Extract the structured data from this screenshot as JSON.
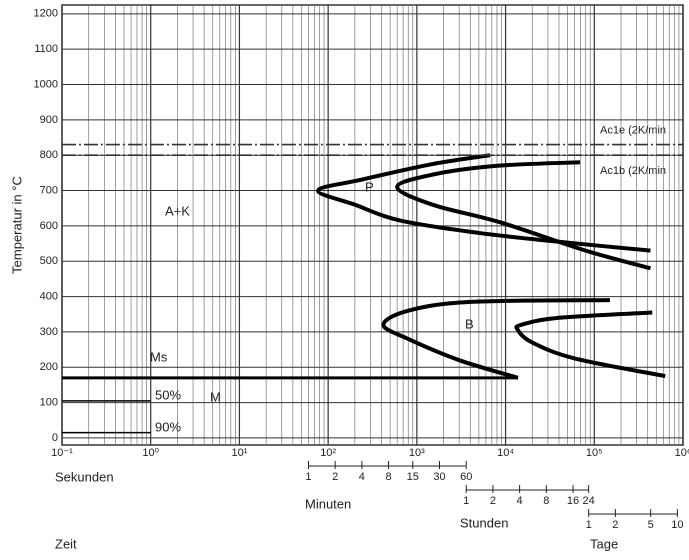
{
  "chart_data": {
    "type": "line",
    "ylabel": "Temperatur in °C",
    "xlabel": "Sekunden",
    "xlabel2": "Zeit",
    "xscale": "log",
    "grid": true,
    "xlim": [
      0.1,
      1000000
    ],
    "xticks": [
      {
        "value": 0.1,
        "label": "10⁻¹"
      },
      {
        "value": 1,
        "label": "10⁰"
      },
      {
        "value": 10,
        "label": "10¹"
      },
      {
        "value": 100,
        "label": "10²"
      },
      {
        "value": 1000,
        "label": "10³"
      },
      {
        "value": 10000,
        "label": "10⁴"
      },
      {
        "value": 100000,
        "label": "10⁵"
      },
      {
        "value": 1000000,
        "label": "10⁶"
      }
    ],
    "ylim": [
      -20,
      1225
    ],
    "yticks": [
      0,
      100,
      200,
      300,
      400,
      500,
      600,
      700,
      800,
      900,
      1000,
      1100,
      1200
    ],
    "series": [
      {
        "color": "#000000",
        "x": [
          6700,
          1500,
          230,
          77,
          200,
          650,
          5000,
          40000,
          430000
        ],
        "values": [
          800,
          775,
          730,
          700,
          660,
          615,
          580,
          555,
          530
        ]
      },
      {
        "color": "#000000",
        "x": [
          69000,
          8000,
          1500,
          600,
          1500,
          8700,
          80000,
          430000
        ],
        "values": [
          780,
          770,
          745,
          710,
          660,
          610,
          530,
          480
        ]
      },
      {
        "color": "#000000",
        "x": [
          150000,
          4000,
          800,
          420,
          800,
          3000,
          13800
        ],
        "values": [
          390,
          385,
          360,
          320,
          280,
          220,
          170
        ]
      },
      {
        "color": "#000000",
        "x": [
          450000,
          40000,
          15000,
          13800,
          20000,
          60000,
          630000
        ],
        "values": [
          355,
          340,
          320,
          305,
          270,
          225,
          175
        ]
      },
      {
        "color": "#000000",
        "x": [
          0.1,
          13800
        ],
        "values": [
          170,
          170
        ]
      },
      {
        "color": "#000000",
        "x": [
          0.1,
          1
        ],
        "values": [
          105,
          105
        ]
      },
      {
        "color": "#000000",
        "x": [
          0.1,
          1
        ],
        "values": [
          15,
          15
        ]
      },
      {
        "name": "Ac1e (2K/min",
        "color": "#333333",
        "dash": "dashdot",
        "x": [
          0.1,
          1000000
        ],
        "values": [
          830,
          830
        ]
      },
      {
        "name": "Ac1b (2K/min",
        "color": "#333333",
        "dash": "dashdot",
        "x": [
          0.1,
          1000000
        ],
        "values": [
          800,
          800
        ]
      }
    ],
    "annotations": [
      "A+K",
      "P",
      "B",
      "Ms",
      "50%",
      "M",
      "90%"
    ],
    "time_scales": [
      {
        "label": "Minuten",
        "ticks": [
          {
            "value": 60,
            "label": "1"
          },
          {
            "value": 120,
            "label": "2"
          },
          {
            "value": 240,
            "label": "4"
          },
          {
            "value": 480,
            "label": "8"
          },
          {
            "value": 900,
            "label": "15"
          },
          {
            "value": 1800,
            "label": "30"
          },
          {
            "value": 3600,
            "label": "60"
          }
        ]
      },
      {
        "label": "Stunden",
        "ticks": [
          {
            "value": 3600,
            "label": "1"
          },
          {
            "value": 7200,
            "label": "2"
          },
          {
            "value": 14400,
            "label": "4"
          },
          {
            "value": 28800,
            "label": "8"
          },
          {
            "value": 57600,
            "label": "16"
          },
          {
            "value": 86400,
            "label": "24"
          }
        ]
      },
      {
        "label": "Tage",
        "ticks": [
          {
            "value": 86400,
            "label": "1"
          },
          {
            "value": 172800,
            "label": "2"
          },
          {
            "value": 432000,
            "label": "5"
          },
          {
            "value": 864000,
            "label": "10"
          }
        ]
      }
    ]
  }
}
